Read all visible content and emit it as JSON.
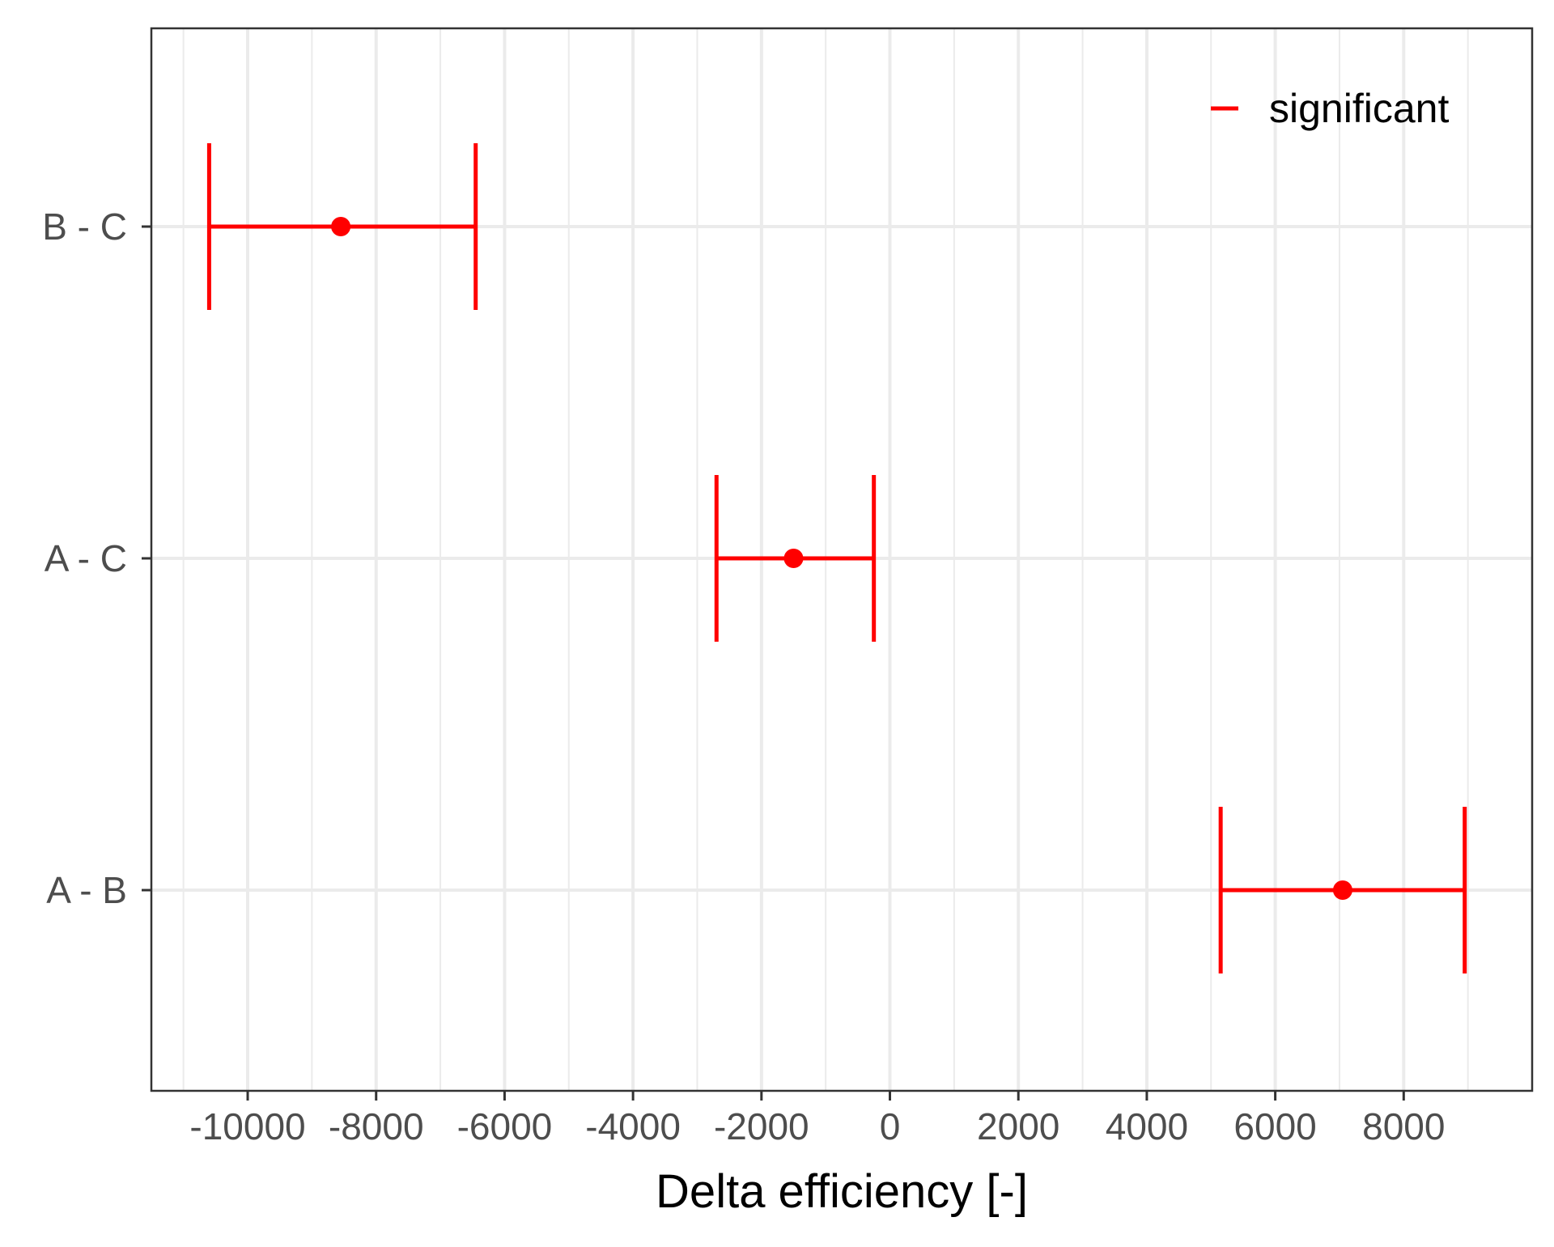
{
  "chart_data": {
    "type": "errorbar",
    "orientation": "horizontal",
    "xlabel": "Delta efficiency [-]",
    "ylabel": "",
    "xlim": [
      -11500,
      10000
    ],
    "x_ticks": [
      -10000,
      -8000,
      -6000,
      -4000,
      -2000,
      0,
      2000,
      4000,
      6000,
      8000
    ],
    "x_tick_labels": [
      "-10000",
      "-8000",
      "-6000",
      "-4000",
      "-2000",
      "0",
      "2000",
      "4000",
      "6000",
      "8000"
    ],
    "x_minor_ticks": [
      -11000,
      -9000,
      -7000,
      -5000,
      -3000,
      -1000,
      1000,
      3000,
      5000,
      7000,
      9000
    ],
    "categories": [
      "A - B",
      "A - C",
      "B - C"
    ],
    "series": [
      {
        "name": "significant",
        "color": "#ff0000",
        "points": [
          {
            "category": "A - B",
            "estimate": 7050,
            "lower": 5150,
            "upper": 8950
          },
          {
            "category": "A - C",
            "estimate": -1500,
            "lower": -2700,
            "upper": -250
          },
          {
            "category": "B - C",
            "estimate": -8550,
            "lower": -10600,
            "upper": -6450
          }
        ]
      }
    ],
    "legend": {
      "position": "top-right",
      "entries": [
        "significant"
      ]
    },
    "grid": true,
    "theme": {
      "panel_border": "#333333",
      "grid_color": "#ebebeb",
      "background": "#ffffff"
    }
  }
}
